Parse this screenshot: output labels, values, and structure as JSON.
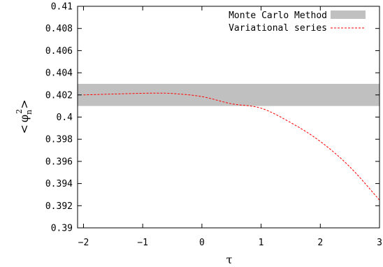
{
  "chart_data": {
    "type": "line",
    "title": "",
    "xlabel": "τ",
    "ylabel": {
      "open": "<",
      "base": "φ",
      "sub": "n",
      "sup": "2",
      "close": ">"
    },
    "xlim": [
      -2.1,
      3
    ],
    "ylim": [
      0.39,
      0.41
    ],
    "xticks": [
      {
        "value": -2,
        "label": "−2"
      },
      {
        "value": -1,
        "label": "−1"
      },
      {
        "value": 0,
        "label": "0"
      },
      {
        "value": 1,
        "label": "1"
      },
      {
        "value": 2,
        "label": "2"
      },
      {
        "value": 3,
        "label": "3"
      }
    ],
    "yticks": [
      {
        "value": 0.39,
        "label": "0.39"
      },
      {
        "value": 0.392,
        "label": "0.392"
      },
      {
        "value": 0.394,
        "label": "0.394"
      },
      {
        "value": 0.396,
        "label": "0.396"
      },
      {
        "value": 0.398,
        "label": "0.398"
      },
      {
        "value": 0.4,
        "label": "0.4"
      },
      {
        "value": 0.402,
        "label": "0.402"
      },
      {
        "value": 0.404,
        "label": "0.404"
      },
      {
        "value": 0.406,
        "label": "0.406"
      },
      {
        "value": 0.408,
        "label": "0.408"
      },
      {
        "value": 0.41,
        "label": "0.41"
      }
    ],
    "grid": false,
    "legend_position": "top-right",
    "series": [
      {
        "name": "Monte Carlo Method",
        "type": "band",
        "color": "#c0c0c0",
        "y_low": 0.401,
        "y_high": 0.403
      },
      {
        "name": "Variational series",
        "type": "line",
        "style": "dashed",
        "color": "#ff0000",
        "x": [
          -2.0,
          -1.5,
          -1.0,
          -0.75,
          -0.5,
          0.0,
          0.5,
          1.0,
          1.5,
          2.0,
          2.5,
          3.0
        ],
        "y": [
          0.402,
          0.40208,
          0.40215,
          0.40216,
          0.40213,
          0.40185,
          0.4012,
          0.4008,
          0.3995,
          0.3978,
          0.3955,
          0.3925
        ]
      }
    ]
  }
}
